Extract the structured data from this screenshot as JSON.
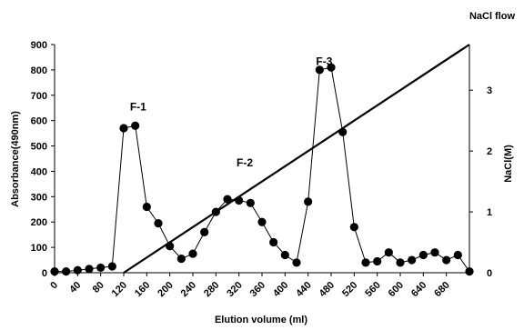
{
  "chart_data": {
    "type": "line",
    "title": "NaCl flow",
    "xlabel": "Elution volume (ml)",
    "ylabel": "Absorbance(490nm)",
    "y2label": "NaCl(M)",
    "xlim": [
      0,
      720
    ],
    "ylim": [
      0,
      900
    ],
    "y2lim": [
      0,
      3.75
    ],
    "x_ticks": [
      "0",
      "40",
      "80",
      "120",
      "160",
      "200",
      "240",
      "280",
      "320",
      "360",
      "400",
      "440",
      "480",
      "520",
      "560",
      "600",
      "640",
      "680"
    ],
    "y_ticks": [
      "0",
      "100",
      "200",
      "300",
      "400",
      "500",
      "600",
      "700",
      "800",
      "900"
    ],
    "y2_ticks": [
      "0",
      "1",
      "2",
      "3"
    ],
    "grid": false,
    "series": [
      {
        "name": "",
        "axis": "left",
        "style": "line-markers",
        "x": [
          0,
          20,
          40,
          60,
          80,
          100,
          120,
          140,
          160,
          180,
          200,
          220,
          240,
          260,
          280,
          300,
          320,
          340,
          360,
          380,
          400,
          420,
          440,
          460,
          480,
          500,
          520,
          540,
          560,
          580,
          600,
          620,
          640,
          660,
          680,
          700,
          720
        ],
        "values": [
          5,
          5,
          10,
          15,
          20,
          25,
          570,
          580,
          260,
          195,
          105,
          55,
          75,
          160,
          240,
          290,
          285,
          275,
          200,
          120,
          70,
          40,
          280,
          800,
          810,
          555,
          180,
          40,
          45,
          80,
          40,
          50,
          70,
          80,
          50,
          70,
          5
        ]
      },
      {
        "name": "",
        "axis": "right",
        "style": "line",
        "x": [
          120,
          720
        ],
        "values": [
          0,
          3.75
        ]
      }
    ],
    "annotations": [
      {
        "text": "F-1",
        "x": 145,
        "y": 640
      },
      {
        "text": "F-2",
        "x": 330,
        "y": 420
      },
      {
        "text": "F-3",
        "x": 468,
        "y": 820
      }
    ]
  }
}
